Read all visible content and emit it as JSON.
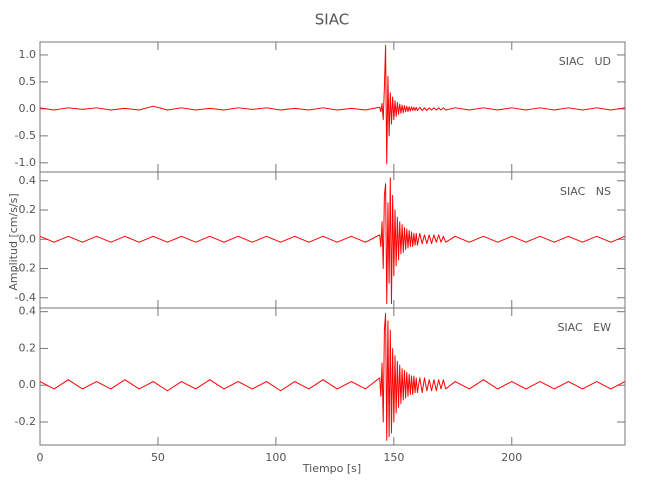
{
  "title": "SIAC",
  "y_label": "Amplitud [cm/s/s]",
  "x_label": "Tiempo [s]",
  "chart_data": [
    {
      "type": "line",
      "label": "SIAC   UD",
      "color": "#ff0000",
      "x": [
        0,
        6,
        12,
        18,
        24,
        30,
        36,
        42,
        48,
        54,
        60,
        66,
        72,
        78,
        84,
        90,
        96,
        102,
        108,
        114,
        120,
        126,
        132,
        138,
        144,
        144.5,
        145,
        145.5,
        146,
        146.5,
        147,
        147.5,
        148,
        148.5,
        149,
        149.5,
        150,
        150.5,
        151,
        151.5,
        152,
        152.5,
        153,
        153.5,
        154,
        154.5,
        155,
        155.5,
        156,
        156.5,
        157,
        157.5,
        158,
        158.5,
        159,
        159.5,
        160,
        161,
        162,
        163,
        164,
        165,
        166,
        167,
        168,
        169,
        170,
        171,
        172,
        176,
        182,
        188,
        194,
        200,
        206,
        212,
        218,
        224,
        230,
        236,
        242,
        248
      ],
      "values": [
        0.02,
        -0.02,
        0.02,
        -0.01,
        0.02,
        -0.02,
        0.01,
        -0.02,
        0.05,
        -0.02,
        0.02,
        -0.02,
        0.01,
        -0.02,
        0.02,
        -0.01,
        0.02,
        -0.02,
        0.01,
        -0.02,
        0.02,
        -0.02,
        0.01,
        -0.02,
        0.03,
        -0.05,
        0.1,
        -0.2,
        0.4,
        1.18,
        -1.02,
        0.6,
        -0.5,
        0.3,
        -0.28,
        0.22,
        -0.2,
        0.15,
        -0.14,
        0.12,
        -0.1,
        0.09,
        -0.08,
        0.07,
        -0.07,
        0.06,
        -0.05,
        0.05,
        -0.05,
        0.04,
        -0.04,
        0.04,
        -0.03,
        0.03,
        -0.03,
        0.03,
        -0.03,
        0.03,
        -0.03,
        0.02,
        -0.03,
        0.02,
        -0.02,
        0.02,
        -0.02,
        0.02,
        -0.02,
        0.02,
        -0.02,
        0.02,
        -0.02,
        0.02,
        -0.02,
        0.02,
        -0.02,
        0.02,
        -0.02,
        0.02,
        -0.02,
        0.02,
        -0.02,
        0.02
      ],
      "xlim": [
        0,
        248
      ],
      "ylim": [
        -1.17,
        1.24
      ],
      "yticks": [
        {
          "value": -1,
          "label": "-1.0"
        },
        {
          "value": -0.5,
          "label": "-0.5"
        },
        {
          "value": 0,
          "label": "0.0"
        },
        {
          "value": 0.5,
          "label": "0.5"
        },
        {
          "value": 1,
          "label": "1.0"
        }
      ]
    },
    {
      "type": "line",
      "label": "SIAC   NS",
      "color": "#ff0000",
      "x": [
        0,
        6,
        12,
        18,
        24,
        30,
        36,
        42,
        48,
        54,
        60,
        66,
        72,
        78,
        84,
        90,
        96,
        102,
        108,
        114,
        120,
        126,
        132,
        138,
        144,
        144.5,
        145,
        145.5,
        146,
        146.5,
        147,
        147.5,
        148,
        148.5,
        149,
        149.5,
        150,
        150.5,
        151,
        151.5,
        152,
        152.5,
        153,
        153.5,
        154,
        154.5,
        155,
        155.5,
        156,
        156.5,
        157,
        157.5,
        158,
        158.5,
        159,
        159.5,
        160,
        161,
        162,
        163,
        164,
        165,
        166,
        167,
        168,
        169,
        170,
        171,
        172,
        176,
        182,
        188,
        194,
        200,
        206,
        212,
        218,
        224,
        230,
        236,
        242,
        248
      ],
      "values": [
        0.02,
        -0.02,
        0.02,
        -0.02,
        0.02,
        -0.02,
        0.02,
        -0.02,
        0.02,
        -0.02,
        0.02,
        -0.02,
        0.02,
        -0.02,
        0.02,
        -0.02,
        0.02,
        -0.02,
        0.02,
        -0.02,
        0.02,
        -0.02,
        0.02,
        -0.02,
        0.03,
        -0.05,
        0.12,
        -0.2,
        0.3,
        0.38,
        -0.44,
        0.25,
        -0.3,
        0.42,
        -0.44,
        0.3,
        -0.25,
        0.2,
        -0.18,
        0.15,
        -0.14,
        0.12,
        -0.1,
        0.1,
        -0.09,
        0.08,
        -0.07,
        0.07,
        -0.06,
        0.06,
        -0.05,
        0.05,
        -0.05,
        0.04,
        -0.04,
        0.04,
        -0.04,
        0.04,
        -0.03,
        0.03,
        -0.03,
        0.03,
        -0.03,
        0.03,
        -0.02,
        0.03,
        -0.02,
        0.02,
        -0.02,
        0.02,
        -0.02,
        0.02,
        -0.02,
        0.02,
        -0.02,
        0.02,
        -0.02,
        0.02,
        -0.02,
        0.02,
        -0.02,
        0.02
      ],
      "xlim": [
        0,
        248
      ],
      "ylim": [
        -0.47,
        0.46
      ],
      "yticks": [
        -0.4,
        -0.2,
        {
          "value": 0,
          "label": "0.0"
        },
        0.2,
        0.4
      ]
    },
    {
      "type": "line",
      "label": "SIAC   EW",
      "color": "#ff0000",
      "x": [
        0,
        6,
        12,
        18,
        24,
        30,
        36,
        42,
        48,
        54,
        60,
        66,
        72,
        78,
        84,
        90,
        96,
        102,
        108,
        114,
        120,
        126,
        132,
        138,
        144,
        144.5,
        145,
        145.5,
        146,
        146.5,
        147,
        147.5,
        148,
        148.5,
        149,
        149.5,
        150,
        150.5,
        151,
        151.5,
        152,
        152.5,
        153,
        153.5,
        154,
        154.5,
        155,
        155.5,
        156,
        156.5,
        157,
        157.5,
        158,
        158.5,
        159,
        159.5,
        160,
        161,
        162,
        163,
        164,
        165,
        166,
        167,
        168,
        169,
        170,
        171,
        172,
        176,
        182,
        188,
        194,
        200,
        206,
        212,
        218,
        224,
        230,
        236,
        242,
        248
      ],
      "values": [
        0.02,
        -0.02,
        0.03,
        -0.02,
        0.02,
        -0.02,
        0.03,
        -0.02,
        0.02,
        -0.03,
        0.02,
        -0.02,
        0.03,
        -0.02,
        0.02,
        -0.02,
        0.02,
        -0.03,
        0.02,
        -0.02,
        0.03,
        -0.02,
        0.02,
        -0.02,
        0.04,
        -0.06,
        0.12,
        -0.2,
        0.3,
        0.39,
        -0.3,
        0.35,
        -0.28,
        0.3,
        -0.26,
        0.2,
        -0.2,
        0.16,
        -0.15,
        0.13,
        -0.12,
        0.11,
        -0.1,
        0.09,
        -0.08,
        0.08,
        -0.07,
        0.07,
        -0.06,
        0.06,
        -0.05,
        0.05,
        -0.05,
        0.05,
        -0.04,
        0.04,
        -0.04,
        0.04,
        -0.04,
        0.04,
        -0.03,
        0.03,
        -0.03,
        0.03,
        -0.03,
        0.03,
        -0.02,
        0.03,
        -0.02,
        0.02,
        -0.02,
        0.03,
        -0.02,
        0.02,
        -0.02,
        0.02,
        -0.02,
        0.02,
        -0.02,
        0.02,
        -0.02,
        0.02
      ],
      "xlim": [
        0,
        248
      ],
      "ylim": [
        -0.325,
        0.42
      ],
      "yticks": [
        -0.2,
        {
          "value": 0,
          "label": "0.0"
        },
        0.2,
        0.4
      ],
      "xticks": [
        0,
        50,
        100,
        150,
        200
      ]
    }
  ]
}
